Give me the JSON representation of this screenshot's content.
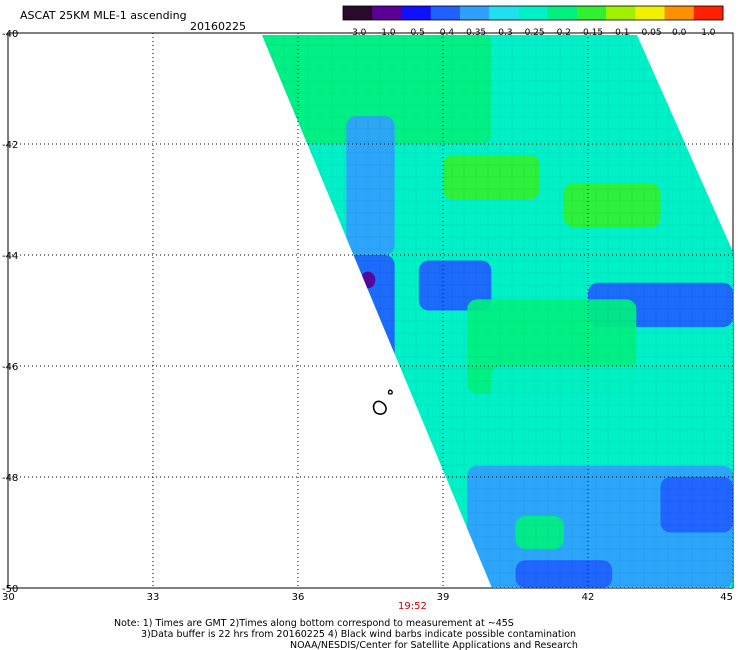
{
  "header": {
    "title": "ASCAT 25KM MLE-1 ascending",
    "date": "20160225"
  },
  "colorbar": {
    "labels": [
      "-3.0",
      "-1.0",
      "-0.5",
      "-0.4",
      "-0.35",
      "-0.3",
      "-0.25",
      "-0.2",
      "-0.15",
      "-0.1",
      "-0.05",
      "0.0",
      "1.0"
    ],
    "colors": [
      "#2a0a2a",
      "#5a0096",
      "#1010ff",
      "#2060ff",
      "#30a0ff",
      "#20e0f0",
      "#00f0c8",
      "#00f080",
      "#30f030",
      "#a0f000",
      "#f0f000",
      "#ff9000",
      "#ff2000"
    ]
  },
  "chart_data": {
    "type": "heatmap",
    "title": "ASCAT 25KM MLE-1 ascending",
    "x_axis": {
      "range": [
        30,
        45
      ],
      "ticks": [
        30,
        33,
        36,
        39,
        42,
        45
      ],
      "tick_labels": [
        "30",
        "33",
        "36",
        "39",
        "42",
        "45"
      ]
    },
    "y_axis": {
      "range": [
        -50,
        -40
      ],
      "ticks": [
        -40,
        -42,
        -44,
        -46,
        -48,
        -50
      ],
      "tick_labels": [
        "-40",
        "-42",
        "-44",
        "-46",
        "-48",
        "-50"
      ]
    },
    "grid": true,
    "value_scale": "MLE",
    "swath_pass_time": "19:52",
    "regions": [
      {
        "lon": [
          35,
          40
        ],
        "lat": [
          -42,
          -40
        ],
        "level": "-0.2"
      },
      {
        "lon": [
          40,
          44
        ],
        "lat": [
          -42.5,
          -41
        ],
        "level": "-0.25"
      },
      {
        "lon": [
          39,
          41
        ],
        "lat": [
          -43,
          -42.2
        ],
        "level": "-0.15"
      },
      {
        "lon": [
          41.5,
          43.5
        ],
        "lat": [
          -43.5,
          -42.7
        ],
        "level": "-0.15"
      },
      {
        "lon": [
          37,
          38
        ],
        "lat": [
          -44,
          -41.5
        ],
        "level": "-0.35"
      },
      {
        "lon": [
          36.5,
          38
        ],
        "lat": [
          -46,
          -44
        ],
        "level": "-0.4"
      },
      {
        "lon": [
          38.5,
          40
        ],
        "lat": [
          -45,
          -44.1
        ],
        "level": "-0.4"
      },
      {
        "lon": [
          37.3,
          37.6
        ],
        "lat": [
          -44.6,
          -44.3
        ],
        "level": "-1.0"
      },
      {
        "lon": [
          42,
          45
        ],
        "lat": [
          -45.3,
          -44.5
        ],
        "level": "-0.4"
      },
      {
        "lon": [
          39.5,
          43
        ],
        "lat": [
          -46.5,
          -44.8
        ],
        "level": "-0.2"
      },
      {
        "lon": [
          40,
          45
        ],
        "lat": [
          -47.8,
          -46
        ],
        "level": "-0.25"
      },
      {
        "lon": [
          39.5,
          45
        ],
        "lat": [
          -50,
          -47.8
        ],
        "level": "-0.35"
      },
      {
        "lon": [
          43.5,
          45
        ],
        "lat": [
          -49,
          -48
        ],
        "level": "-0.4"
      },
      {
        "lon": [
          40.5,
          42.5
        ],
        "lat": [
          -50,
          -49.5
        ],
        "level": "-0.4"
      },
      {
        "lon": [
          40.5,
          41.5
        ],
        "lat": [
          -49.3,
          -48.7
        ],
        "level": "-0.2"
      }
    ]
  },
  "bottom": {
    "time_label": "19:52",
    "note_line1": "Note: 1) Times are GMT 2)Times along bottom correspond to measurement at ~45S",
    "note_line2": "3)Data buffer is 22 hrs from 20160225 4) Black wind barbs indicate possible contamination",
    "note_line3": "NOAA/NESDIS/Center for Satellite Applications and Research"
  }
}
